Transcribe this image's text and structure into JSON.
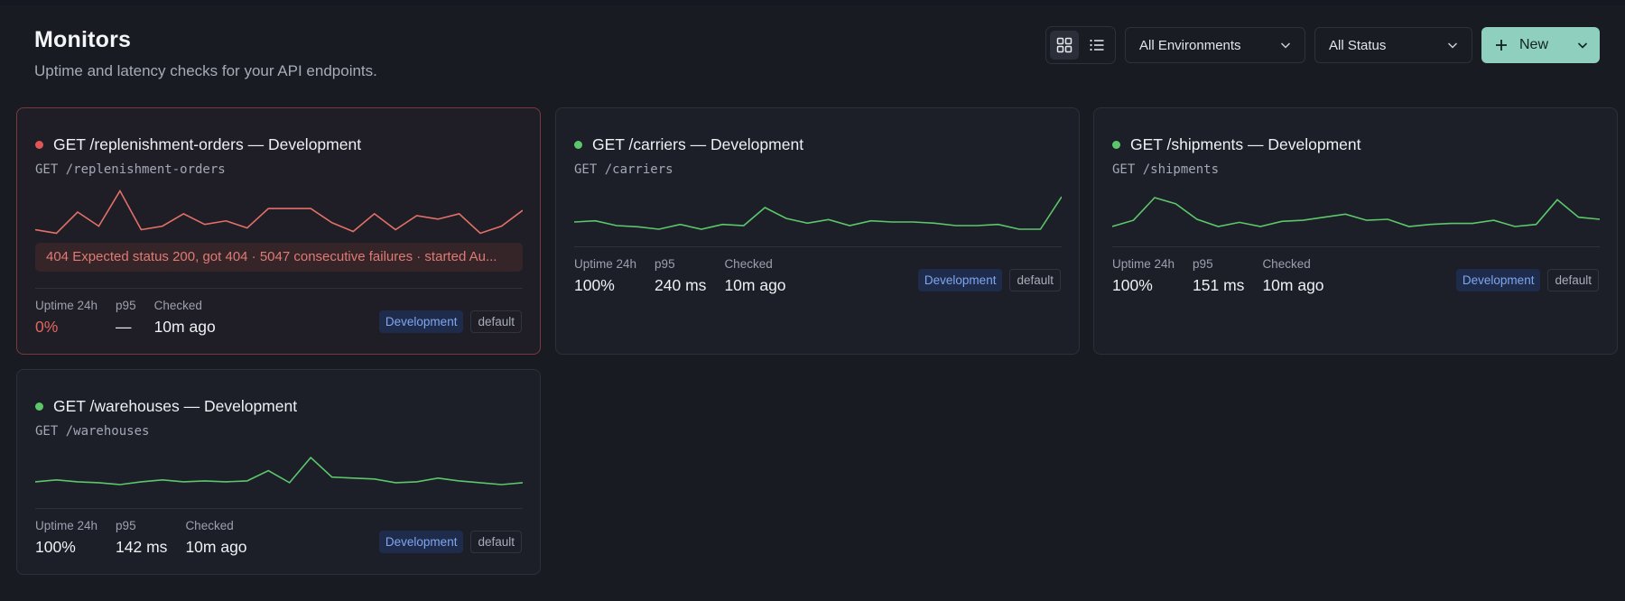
{
  "header": {
    "title": "Monitors",
    "subtitle": "Uptime and latency checks for your API endpoints."
  },
  "controls": {
    "env_filter": "All Environments",
    "status_filter": "All Status",
    "new_label": "New"
  },
  "labels": {
    "uptime": "Uptime 24h",
    "p95": "p95",
    "checked": "Checked"
  },
  "monitors": [
    {
      "name": "GET /replenishment-orders — Development",
      "path": "GET /replenishment-orders",
      "status": "down",
      "error": "404 Expected status 200, got 404 · 5047 consecutive failures · started Au...",
      "uptime": "0%",
      "p95": "—",
      "checked": "10m ago",
      "env": "Development",
      "namespace": "default",
      "spark": [
        22,
        24,
        12,
        20,
        0,
        22,
        20,
        13,
        19,
        17,
        21,
        10,
        10,
        10,
        18,
        23,
        13,
        22,
        14,
        16,
        13,
        24,
        20,
        11
      ]
    },
    {
      "name": "GET /carriers — Development",
      "path": "GET /carriers",
      "status": "up",
      "error": "",
      "uptime": "100%",
      "p95": "240 ms",
      "checked": "10m ago",
      "env": "Development",
      "namespace": "default",
      "spark": [
        21,
        20,
        24,
        25,
        27,
        23,
        27,
        23,
        24,
        9,
        18,
        22,
        19,
        24,
        20,
        21,
        21,
        22,
        24,
        24,
        23,
        27,
        27,
        0
      ]
    },
    {
      "name": "GET /shipments — Development",
      "path": "GET /shipments",
      "status": "up",
      "error": "",
      "uptime": "100%",
      "p95": "151 ms",
      "checked": "10m ago",
      "env": "Development",
      "namespace": "default",
      "spark": [
        28,
        22,
        0,
        6,
        21,
        28,
        24,
        28,
        23,
        22,
        19,
        16,
        22,
        21,
        28,
        26,
        25,
        25,
        22,
        28,
        26,
        2,
        19,
        21
      ]
    },
    {
      "name": "GET /warehouses — Development",
      "path": "GET /warehouses",
      "status": "up",
      "error": "",
      "uptime": "100%",
      "p95": "142 ms",
      "checked": "10m ago",
      "env": "Development",
      "namespace": "default",
      "spark": [
        26,
        24,
        26,
        27,
        29,
        26,
        24,
        26,
        25,
        26,
        25,
        14,
        27,
        0,
        21,
        22,
        23,
        27,
        26,
        22,
        25,
        27,
        29,
        27
      ]
    }
  ],
  "colors": {
    "up": "#5cc76a",
    "down": "#e27066",
    "accent": "#8fcfbe"
  },
  "icons": {
    "grid": "grid-icon",
    "list": "list-icon",
    "chevron": "chevron-down-icon",
    "plus": "plus-icon"
  }
}
